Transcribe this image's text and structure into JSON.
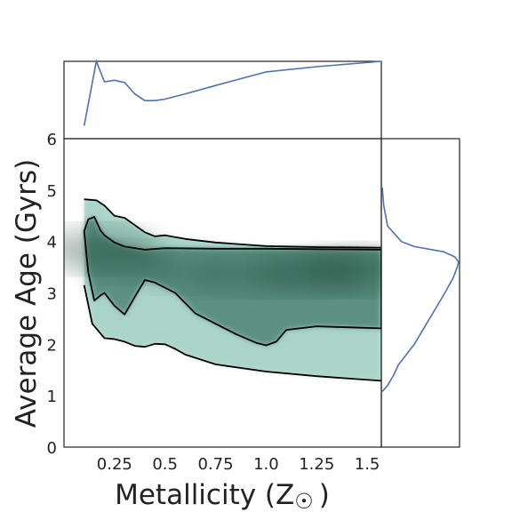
{
  "chart_data": {
    "type": "density-contour",
    "xlabel": "Metallicity (Z",
    "xlabel_symbol": "☉",
    "xlabel_close": ")",
    "ylabel": "Average Age (Gyrs)",
    "xlim": [
      0,
      1.57
    ],
    "ylim": [
      0,
      6
    ],
    "xticks": [
      0.25,
      0.5,
      0.75,
      1.0,
      1.25,
      1.5
    ],
    "xtick_labels": [
      "0.25",
      "0.5",
      "0.75",
      "1.0",
      "1.25",
      "1.5"
    ],
    "yticks": [
      0,
      1,
      2,
      3,
      4,
      5,
      6
    ],
    "ytick_labels": [
      "0",
      "1",
      "2",
      "3",
      "4",
      "5",
      "6"
    ],
    "grid": false,
    "colors": {
      "density": "#1f5a46",
      "marginal_line": "#4c72b0",
      "contour": "#000000",
      "frame": "#222222"
    },
    "contours": [
      {
        "level": "outer-upper",
        "x": [
          0.1,
          0.16,
          0.2,
          0.25,
          0.3,
          0.35,
          0.4,
          0.45,
          0.5,
          0.6,
          0.75,
          1.0,
          1.25,
          1.57
        ],
        "y": [
          4.82,
          4.8,
          4.7,
          4.5,
          4.46,
          4.32,
          4.18,
          4.1,
          4.12,
          4.05,
          3.98,
          3.91,
          3.89,
          3.88
        ]
      },
      {
        "level": "outer-lower",
        "x": [
          0.1,
          0.14,
          0.2,
          0.25,
          0.3,
          0.35,
          0.4,
          0.45,
          0.5,
          0.55,
          0.6,
          0.75,
          1.0,
          1.25,
          1.57
        ],
        "y": [
          3.15,
          2.4,
          2.12,
          2.1,
          2.05,
          1.97,
          1.95,
          2.01,
          2.0,
          1.91,
          1.8,
          1.61,
          1.47,
          1.38,
          1.29
        ]
      },
      {
        "level": "inner",
        "x": [
          0.1,
          0.12,
          0.15,
          0.18,
          0.2,
          0.25,
          0.3,
          0.35,
          0.4,
          0.45,
          0.55,
          0.65,
          0.75,
          0.85,
          0.95,
          1.0,
          1.05,
          1.1,
          1.25,
          1.4,
          1.57,
          1.57,
          1.25,
          1.0,
          0.75,
          0.5,
          0.4,
          0.3,
          0.25,
          0.2,
          0.18,
          0.15,
          0.12,
          0.1
        ],
        "y": [
          4.2,
          3.4,
          2.85,
          2.95,
          3.0,
          2.75,
          2.58,
          2.92,
          3.25,
          3.2,
          3.0,
          2.6,
          2.4,
          2.2,
          2.03,
          1.98,
          2.05,
          2.28,
          2.35,
          2.33,
          2.31,
          3.84,
          3.85,
          3.86,
          3.86,
          3.87,
          3.84,
          3.9,
          3.98,
          4.12,
          4.22,
          4.48,
          4.43,
          4.2
        ]
      }
    ],
    "density_peaks": [
      {
        "x": 0.17,
        "y": 3.85,
        "weight": 0.85
      },
      {
        "x": 0.3,
        "y": 3.6,
        "weight": 0.55
      },
      {
        "x": 0.6,
        "y": 3.4,
        "weight": 0.5
      },
      {
        "x": 0.9,
        "y": 3.35,
        "weight": 0.6
      },
      {
        "x": 1.2,
        "y": 3.4,
        "weight": 0.8
      },
      {
        "x": 1.45,
        "y": 3.45,
        "weight": 0.95
      }
    ],
    "marginal_x": {
      "x": [
        0.1,
        0.16,
        0.2,
        0.25,
        0.3,
        0.35,
        0.4,
        0.45,
        0.5,
        0.6,
        0.75,
        1.0,
        1.25,
        1.57
      ],
      "density": [
        0.15,
        1.0,
        0.73,
        0.75,
        0.72,
        0.57,
        0.48,
        0.48,
        0.5,
        0.57,
        0.68,
        0.86,
        0.93,
        1.0
      ]
    },
    "marginal_y": {
      "y": [
        1.08,
        1.2,
        1.4,
        1.6,
        2.0,
        2.5,
        3.0,
        3.3,
        3.5,
        3.6,
        3.7,
        3.8,
        3.9,
        4.0,
        4.3,
        4.7,
        5.05
      ],
      "density": [
        0.0,
        0.07,
        0.15,
        0.21,
        0.42,
        0.62,
        0.82,
        0.93,
        0.98,
        1.0,
        0.95,
        0.8,
        0.42,
        0.25,
        0.07,
        0.02,
        0.0
      ]
    }
  }
}
